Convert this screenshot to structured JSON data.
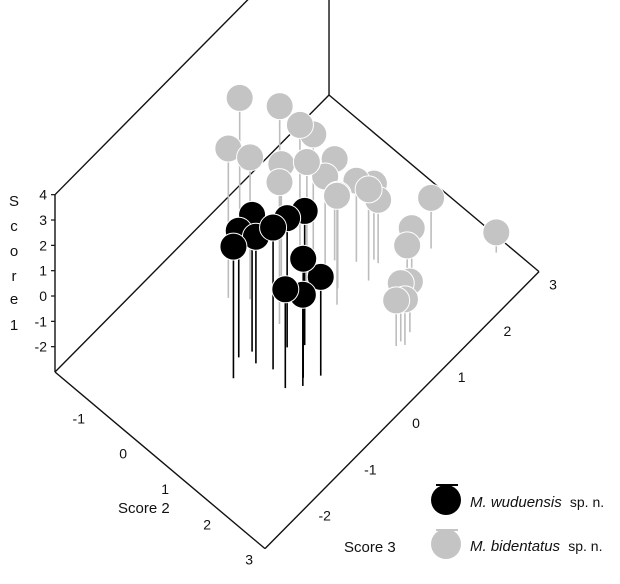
{
  "chart_data": {
    "type": "scatter",
    "subtype": "3d-scatter",
    "axes": {
      "z": {
        "label": "Score 1",
        "ticks": [
          "4",
          "3",
          "2",
          "1",
          "0",
          "-1",
          "-2"
        ]
      },
      "y": {
        "label": "Score 2",
        "ticks": [
          "-1",
          "0",
          "1",
          "2",
          "3"
        ]
      },
      "x": {
        "label": "Score 3",
        "ticks": [
          "-2",
          "-1",
          "0",
          "1",
          "2",
          "3"
        ]
      }
    },
    "series": [
      {
        "name": "M. wuduensis",
        "name_suffix": "sp. n.",
        "color": "#000000",
        "points": [
          {
            "x": -0.8,
            "y": 0.3,
            "z": 2.4
          },
          {
            "x": -1.0,
            "y": 0.2,
            "z": 2.0
          },
          {
            "x": -0.4,
            "y": 0.7,
            "z": 2.1
          },
          {
            "x": -0.2,
            "y": 0.9,
            "z": 2.3
          },
          {
            "x": -0.8,
            "y": 0.8,
            "z": 2.6
          },
          {
            "x": -0.9,
            "y": 0.5,
            "z": 2.0
          },
          {
            "x": -0.6,
            "y": 1.3,
            "z": 1.7
          },
          {
            "x": -0.7,
            "y": 1.4,
            "z": 0.6
          },
          {
            "x": -0.9,
            "y": 1.2,
            "z": 0.9
          },
          {
            "x": -0.4,
            "y": 1.5,
            "z": 0.9
          },
          {
            "x": -1.3,
            "y": 0.4,
            "z": 2.2
          }
        ]
      },
      {
        "name": "M. bidentatus",
        "name_suffix": "sp. n.",
        "color": "#c4c4c4",
        "points": [
          {
            "x": 0.4,
            "y": -1.3,
            "z": 2.6
          },
          {
            "x": -0.4,
            "y": -0.7,
            "z": 2.9
          },
          {
            "x": -0.2,
            "y": -0.4,
            "z": 2.6
          },
          {
            "x": 1.0,
            "y": -1.0,
            "z": 1.6
          },
          {
            "x": -0.2,
            "y": 0.3,
            "z": 2.6
          },
          {
            "x": 0.4,
            "y": 0.3,
            "z": 2.3
          },
          {
            "x": 0.3,
            "y": -0.2,
            "z": 1.7
          },
          {
            "x": 0.8,
            "y": -0.3,
            "z": 2.2
          },
          {
            "x": 1.0,
            "y": -0.2,
            "z": 1.6
          },
          {
            "x": 1.1,
            "y": 0.2,
            "z": 1.0
          },
          {
            "x": 0.8,
            "y": 0.3,
            "z": 1.0
          },
          {
            "x": 0.6,
            "y": 0.8,
            "z": 1.3
          },
          {
            "x": 0.8,
            "y": 0.6,
            "z": 0.7
          },
          {
            "x": 1.2,
            "y": 0.9,
            "z": 0.6
          },
          {
            "x": 1.3,
            "y": 0.5,
            "z": 0.2
          },
          {
            "x": 1.5,
            "y": 0.7,
            "z": 0.0
          },
          {
            "x": 1.5,
            "y": 0.8,
            "z": -0.5
          },
          {
            "x": 1.5,
            "y": 1.6,
            "z": -0.5
          },
          {
            "x": 0.8,
            "y": 2.1,
            "z": -0.7
          },
          {
            "x": 0.7,
            "y": 2.1,
            "z": -1.2
          },
          {
            "x": 1.0,
            "y": 2.1,
            "z": -1.0
          },
          {
            "x": 0.8,
            "y": 2.2,
            "z": -1.2
          },
          {
            "x": 1.4,
            "y": 1.6,
            "z": -1.0
          },
          {
            "x": 2.2,
            "y": 1.3,
            "z": -1.0
          },
          {
            "x": 2.8,
            "y": 2.2,
            "z": -2.2
          }
        ]
      }
    ],
    "legend": {
      "position": "bottom-right"
    },
    "grid": false
  }
}
